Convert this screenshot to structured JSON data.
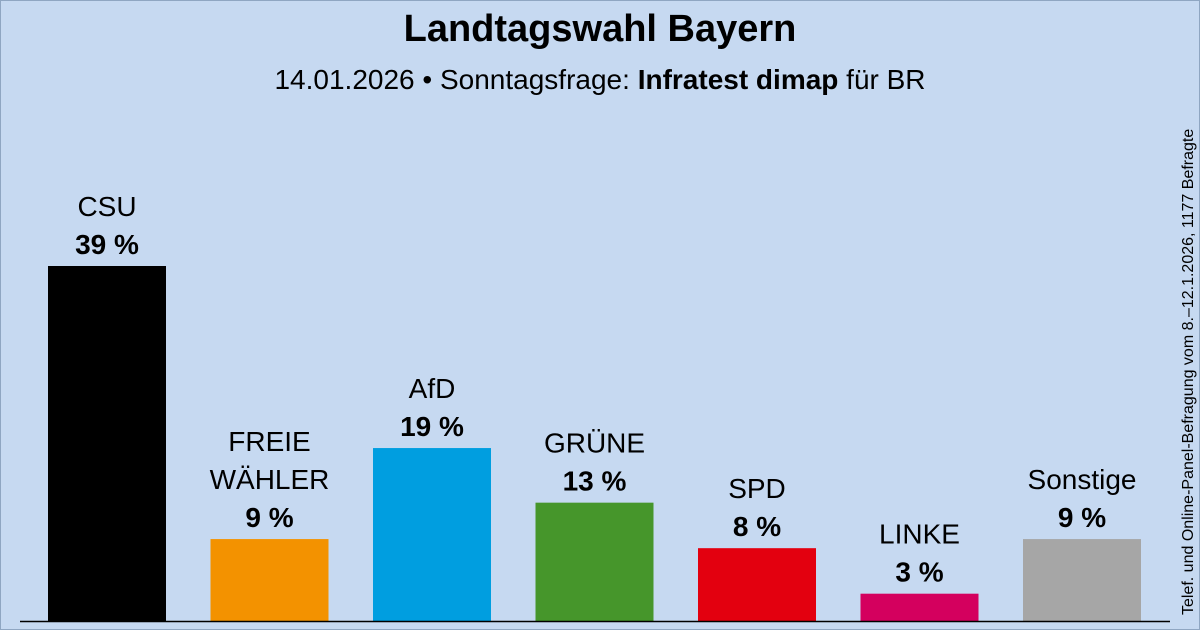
{
  "header": {
    "title": "Landtagswahl Bayern",
    "subtitle_date": "14.01.2026",
    "subtitle_sep": "•",
    "subtitle_type": "Sonntagsfrage:",
    "subtitle_institute": "Infratest dimap",
    "subtitle_client": "für BR"
  },
  "side_note": "Telef. und Online-Panel-Befragung vom 8.–12.1.2026, 1177 Befragte",
  "chart_data": {
    "type": "bar",
    "categories": [
      "CSU",
      "FREIE WÄHLER",
      "AfD",
      "GRÜNE",
      "SPD",
      "LINKE",
      "Sonstige"
    ],
    "category_lines": [
      [
        "CSU"
      ],
      [
        "FREIE",
        "WÄHLER"
      ],
      [
        "AfD"
      ],
      [
        "GRÜNE"
      ],
      [
        "SPD"
      ],
      [
        "LINKE"
      ],
      [
        "Sonstige"
      ]
    ],
    "values": [
      39,
      9,
      19,
      13,
      8,
      3,
      9
    ],
    "value_labels": [
      "39 %",
      "9 %",
      "19 %",
      "13 %",
      "8 %",
      "3 %",
      "9 %"
    ],
    "colors": [
      "#000000",
      "#f39200",
      "#009ee0",
      "#46962b",
      "#e3000f",
      "#d4005e",
      "#a6a6a6"
    ],
    "ylim": [
      0,
      39
    ],
    "grid": false,
    "legend": "none"
  }
}
